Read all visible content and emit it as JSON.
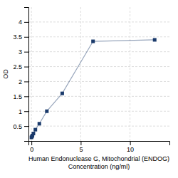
{
  "chart_data": {
    "type": "line",
    "x": [
      0.0,
      0.05,
      0.1,
      0.2,
      0.4,
      0.8,
      1.5625,
      3.125,
      6.25,
      12.5
    ],
    "values": [
      0.12,
      0.15,
      0.18,
      0.25,
      0.38,
      0.58,
      1.0,
      1.6,
      3.35,
      3.4
    ],
    "color": "#1a3a6b",
    "marker": "square",
    "xlabel": "Human Endonuclease G, Mitochondrial (ENDOG)\nConcentration (ng/ml)",
    "ylabel": "OD",
    "xlim": [
      -0.3,
      14.0
    ],
    "ylim": [
      0,
      4.5
    ],
    "xticks": [
      0,
      5,
      10
    ],
    "yticks": [
      0.5,
      1.0,
      1.5,
      2.0,
      2.5,
      3.0,
      3.5,
      4.0
    ],
    "grid": true
  }
}
